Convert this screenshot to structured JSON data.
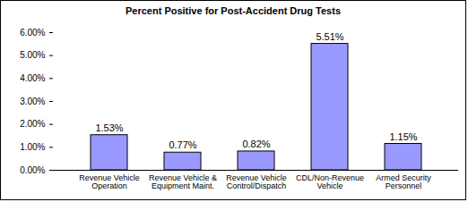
{
  "chart_data": {
    "type": "bar",
    "title": "Percent Positive for Post-Accident Drug Tests",
    "categories": [
      "Revenue Vehicle Operation",
      "Revenue Vehicle & Equipment Maint.",
      "Revenue Vehicle Control/Dispatch",
      "CDL/Non-Revenue Vehicle",
      "Armed Security Personnel"
    ],
    "values": [
      1.53,
      0.77,
      0.82,
      5.51,
      1.15
    ],
    "value_labels": [
      "1.53%",
      "0.77%",
      "0.82%",
      "5.51%",
      "1.15%"
    ],
    "data_labels": true,
    "color": "#9999ff",
    "ylim": [
      0,
      6
    ],
    "yticks": [
      {
        "value": 0,
        "label": "0.00%"
      },
      {
        "value": 1,
        "label": "1.00%"
      },
      {
        "value": 2,
        "label": "2.00%"
      },
      {
        "value": 3,
        "label": "3.00%"
      },
      {
        "value": 4,
        "label": "4.00%"
      },
      {
        "value": 5,
        "label": "5.00%"
      },
      {
        "value": 6,
        "label": "6.00%"
      }
    ],
    "grid": false
  }
}
